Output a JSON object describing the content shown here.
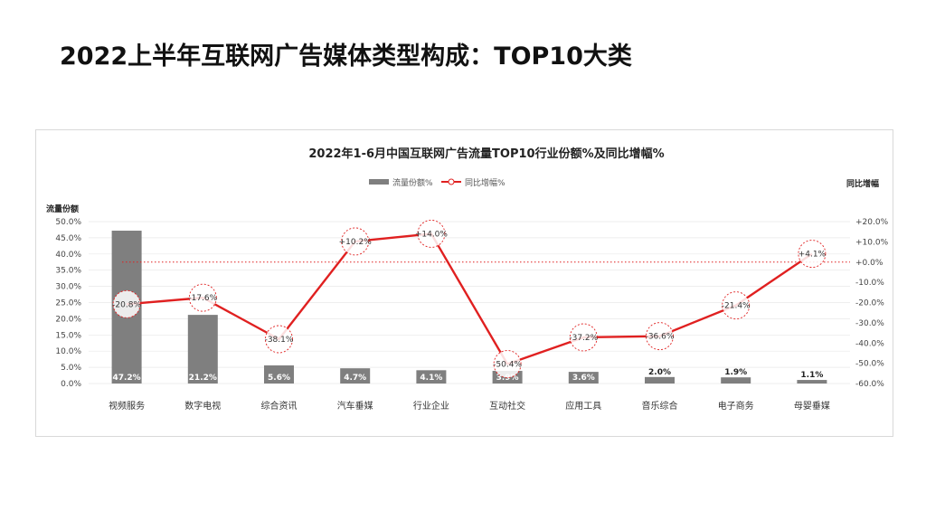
{
  "slide": {
    "title": "2022上半年互联网广告媒体类型构成：TOP10大类"
  },
  "chart_data": {
    "type": "bar",
    "title": "2022年1-6月中国互联网广告流量TOP10行业份额%及同比增幅%",
    "ylabel": "流量份额",
    "y2label": "同比增幅",
    "categories": [
      "视频服务",
      "数字电视",
      "综合资讯",
      "汽车垂媒",
      "行业企业",
      "互动社交",
      "应用工具",
      "音乐综合",
      "电子商务",
      "母婴垂媒"
    ],
    "ylim": [
      0,
      50
    ],
    "y2lim": [
      -60,
      20
    ],
    "y_ticks": [
      "0.0%",
      "5.0%",
      "10.0%",
      "15.0%",
      "20.0%",
      "25.0%",
      "30.0%",
      "35.0%",
      "40.0%",
      "45.0%",
      "50.0%"
    ],
    "y2_ticks": [
      "-60.0%",
      "-50.0%",
      "-40.0%",
      "-30.0%",
      "-20.0%",
      "-10.0%",
      "+0.0%",
      "+10.0%",
      "+20.0%"
    ],
    "legend": {
      "placement": "top-center"
    },
    "series": [
      {
        "name": "流量份额%",
        "type": "bar",
        "axis": "left",
        "color": "#7f7f7f",
        "values": [
          47.2,
          21.2,
          5.6,
          4.7,
          4.1,
          3.9,
          3.6,
          2.0,
          1.9,
          1.1
        ],
        "labels": [
          "47.2%",
          "21.2%",
          "5.6%",
          "4.7%",
          "4.1%",
          "3.9%",
          "3.6%",
          "2.0%",
          "1.9%",
          "1.1%"
        ]
      },
      {
        "name": "同比增幅%",
        "type": "line",
        "axis": "right",
        "color": "#e02020",
        "values": [
          -20.8,
          -17.6,
          -38.1,
          10.2,
          14.0,
          -50.4,
          -37.2,
          -36.6,
          -21.4,
          4.1
        ],
        "labels": [
          "-20.8%",
          "-17.6%",
          "-38.1%",
          "+10.2%",
          "+14.0%",
          "-50.4%",
          "-37.2%",
          "-36.6%",
          "-21.4%",
          "+4.1%"
        ]
      }
    ],
    "reference_line": {
      "value": 0,
      "axis": "right",
      "color": "#e02020",
      "style": "dotted"
    }
  }
}
